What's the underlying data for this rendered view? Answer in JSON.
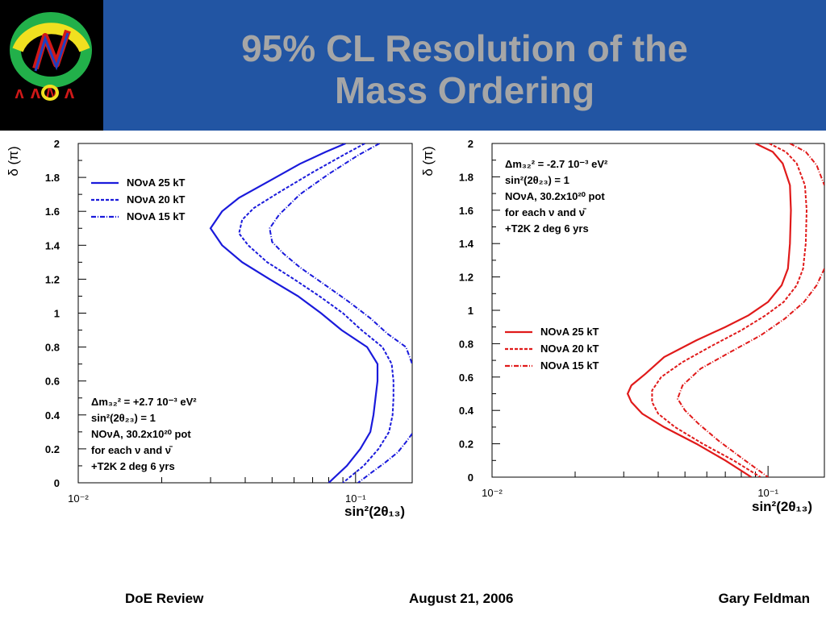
{
  "slide": {
    "title_line1": "95% CL Resolution of the",
    "title_line2": "Mass Ordering",
    "logo_text": "NOνA",
    "footer": {
      "left": "DoE Review",
      "center": "August 21, 2006",
      "right": "Gary Feldman"
    }
  },
  "colors": {
    "header_bg": "#2255a3",
    "title": "#a6a6a6",
    "blue_series": "#1a1adb",
    "red_series": "#e01a1a"
  },
  "chart_data": [
    {
      "type": "line",
      "title": "",
      "xlabel": "sin²(2θ₁₃)",
      "ylabel": "δ (π)",
      "xscale": "log",
      "xlim": [
        0.01,
        0.16
      ],
      "ylim": [
        0,
        2
      ],
      "y_ticks": [
        "0",
        "0.2",
        "0.4",
        "0.6",
        "0.8",
        "1",
        "1.2",
        "1.4",
        "1.6",
        "1.8",
        "2"
      ],
      "x_tick_labels": [
        "10⁻²",
        "10⁻¹"
      ],
      "legend_position": "top-left",
      "annotation_position": "bottom-left",
      "annotation": [
        "Δm₃₂² = +2.7 10⁻³ eV²",
        "sin²(2θ₂₃) = 1",
        "NOνA, 30.2x10²⁰ pot",
        "for each ν and ν̄",
        "+T2K 2 deg 6 yrs"
      ],
      "series": [
        {
          "name": "NOνA 25 kT",
          "style": "solid",
          "color": "#1a1adb",
          "points": [
            [
              0.092,
              2.0
            ],
            [
              0.078,
              1.95
            ],
            [
              0.063,
              1.88
            ],
            [
              0.049,
              1.78
            ],
            [
              0.038,
              1.68
            ],
            [
              0.033,
              1.6
            ],
            [
              0.03,
              1.5
            ],
            [
              0.033,
              1.4
            ],
            [
              0.039,
              1.3
            ],
            [
              0.049,
              1.2
            ],
            [
              0.062,
              1.1
            ],
            [
              0.075,
              1.0
            ],
            [
              0.089,
              0.9
            ],
            [
              0.11,
              0.8
            ],
            [
              0.12,
              0.7
            ],
            [
              0.12,
              0.6
            ],
            [
              0.118,
              0.5
            ],
            [
              0.116,
              0.4
            ],
            [
              0.113,
              0.3
            ],
            [
              0.104,
              0.2
            ],
            [
              0.093,
              0.1
            ],
            [
              0.08,
              0.0
            ]
          ]
        },
        {
          "name": "NOνA 20 kT",
          "style": "dashed",
          "color": "#1a1adb",
          "points": [
            [
              0.108,
              2.0
            ],
            [
              0.09,
              1.93
            ],
            [
              0.07,
              1.83
            ],
            [
              0.054,
              1.72
            ],
            [
              0.043,
              1.62
            ],
            [
              0.039,
              1.55
            ],
            [
              0.038,
              1.47
            ],
            [
              0.041,
              1.4
            ],
            [
              0.048,
              1.3
            ],
            [
              0.06,
              1.2
            ],
            [
              0.074,
              1.1
            ],
            [
              0.09,
              1.0
            ],
            [
              0.105,
              0.9
            ],
            [
              0.125,
              0.8
            ],
            [
              0.135,
              0.7
            ],
            [
              0.137,
              0.6
            ],
            [
              0.137,
              0.5
            ],
            [
              0.136,
              0.4
            ],
            [
              0.132,
              0.3
            ],
            [
              0.121,
              0.2
            ],
            [
              0.107,
              0.1
            ],
            [
              0.09,
              0.0
            ]
          ]
        },
        {
          "name": "NOνA 15 kT",
          "style": "dashdot",
          "color": "#1a1adb",
          "points": [
            [
              0.122,
              2.0
            ],
            [
              0.102,
              1.93
            ],
            [
              0.08,
              1.82
            ],
            [
              0.063,
              1.7
            ],
            [
              0.053,
              1.58
            ],
            [
              0.049,
              1.5
            ],
            [
              0.05,
              1.42
            ],
            [
              0.055,
              1.35
            ],
            [
              0.063,
              1.27
            ],
            [
              0.077,
              1.17
            ],
            [
              0.094,
              1.07
            ],
            [
              0.113,
              0.97
            ],
            [
              0.13,
              0.88
            ],
            [
              0.152,
              0.8
            ],
            [
              0.16,
              0.7
            ]
          ]
        },
        {
          "name": "",
          "style": "dashdot",
          "color": "#1a1adb",
          "points": [
            [
              0.16,
              0.29
            ],
            [
              0.152,
              0.24
            ],
            [
              0.142,
              0.18
            ],
            [
              0.128,
              0.12
            ],
            [
              0.114,
              0.06
            ],
            [
              0.102,
              0.0
            ]
          ]
        }
      ]
    },
    {
      "type": "line",
      "title": "",
      "xlabel": "sin²(2θ₁₃)",
      "ylabel": "δ (π)",
      "xscale": "log",
      "xlim": [
        0.01,
        0.16
      ],
      "ylim": [
        0,
        2
      ],
      "y_ticks": [
        "0",
        "0.2",
        "0.4",
        "0.6",
        "0.8",
        "1",
        "1.2",
        "1.4",
        "1.6",
        "1.8",
        "2"
      ],
      "x_tick_labels": [
        "10⁻²",
        "10⁻¹"
      ],
      "legend_position": "middle-left",
      "annotation_position": "top-left",
      "annotation": [
        "Δm₃₂² = -2.7 10⁻³ eV²",
        "sin²(2θ₂₃) = 1",
        "NOνA, 30.2x10²⁰ pot",
        "for each ν and ν̄",
        "+T2K 2 deg 6 yrs"
      ],
      "series": [
        {
          "name": "NOνA 25 kT",
          "style": "solid",
          "color": "#e01a1a",
          "points": [
            [
              0.09,
              2.0
            ],
            [
              0.104,
              1.95
            ],
            [
              0.113,
              1.88
            ],
            [
              0.12,
              1.75
            ],
            [
              0.121,
              1.6
            ],
            [
              0.12,
              1.4
            ],
            [
              0.118,
              1.25
            ],
            [
              0.112,
              1.15
            ],
            [
              0.1,
              1.05
            ],
            [
              0.085,
              0.97
            ],
            [
              0.07,
              0.9
            ],
            [
              0.055,
              0.82
            ],
            [
              0.042,
              0.72
            ],
            [
              0.036,
              0.62
            ],
            [
              0.032,
              0.55
            ],
            [
              0.031,
              0.5
            ],
            [
              0.032,
              0.45
            ],
            [
              0.035,
              0.38
            ],
            [
              0.042,
              0.3
            ],
            [
              0.055,
              0.2
            ],
            [
              0.07,
              0.1
            ],
            [
              0.087,
              0.0
            ]
          ]
        },
        {
          "name": "NOνA 20 kT",
          "style": "dashed",
          "color": "#e01a1a",
          "points": [
            [
              0.101,
              2.0
            ],
            [
              0.116,
              1.95
            ],
            [
              0.127,
              1.88
            ],
            [
              0.136,
              1.75
            ],
            [
              0.138,
              1.6
            ],
            [
              0.137,
              1.4
            ],
            [
              0.134,
              1.25
            ],
            [
              0.127,
              1.15
            ],
            [
              0.114,
              1.05
            ],
            [
              0.098,
              0.97
            ],
            [
              0.08,
              0.88
            ],
            [
              0.063,
              0.79
            ],
            [
              0.049,
              0.69
            ],
            [
              0.041,
              0.6
            ],
            [
              0.038,
              0.52
            ],
            [
              0.038,
              0.45
            ],
            [
              0.04,
              0.38
            ],
            [
              0.046,
              0.3
            ],
            [
              0.058,
              0.2
            ],
            [
              0.075,
              0.1
            ],
            [
              0.094,
              0.0
            ]
          ]
        },
        {
          "name": "NOνA 15 kT",
          "style": "dashdot",
          "color": "#e01a1a",
          "points": [
            [
              0.12,
              2.0
            ],
            [
              0.137,
              1.95
            ],
            [
              0.15,
              1.87
            ],
            [
              0.16,
              1.75
            ]
          ]
        },
        {
          "name": "",
          "style": "dashdot",
          "color": "#e01a1a",
          "points": [
            [
              0.16,
              1.25
            ],
            [
              0.15,
              1.15
            ],
            [
              0.135,
              1.05
            ],
            [
              0.115,
              0.95
            ],
            [
              0.094,
              0.85
            ],
            [
              0.073,
              0.75
            ],
            [
              0.057,
              0.65
            ],
            [
              0.049,
              0.55
            ],
            [
              0.047,
              0.47
            ],
            [
              0.05,
              0.4
            ],
            [
              0.056,
              0.32
            ],
            [
              0.066,
              0.22
            ],
            [
              0.081,
              0.11
            ],
            [
              0.1,
              0.0
            ]
          ]
        }
      ]
    }
  ]
}
